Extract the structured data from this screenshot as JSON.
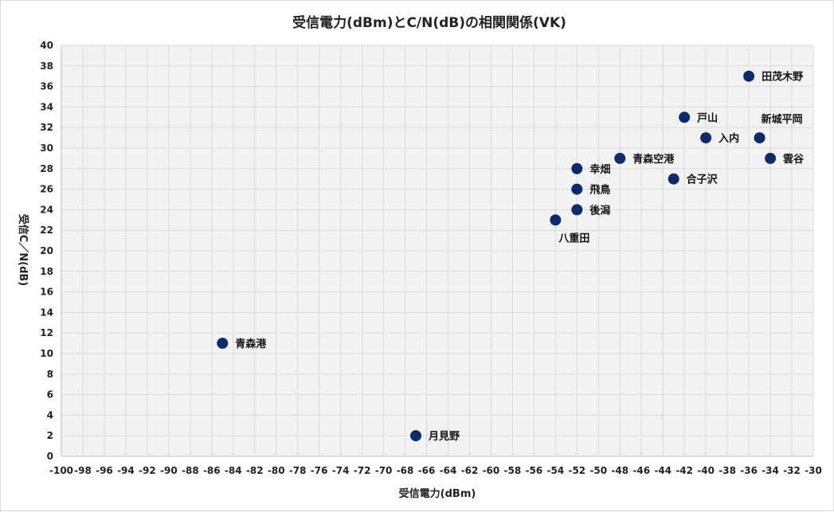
{
  "chart_data": {
    "type": "scatter",
    "title": "受信電力(dBm)とC/N(dB)の相関関係(VK)",
    "xlabel": "受信電力(dBm)",
    "ylabel": "受信C／N(dB)",
    "xlim": [
      -100,
      -30
    ],
    "ylim": [
      0,
      40
    ],
    "xstep": 2,
    "ystep": 2,
    "grid": true,
    "marker_color": "#0d2a6b",
    "gridline_color": "#d9d9d9",
    "plot_background": "#f2f2f2",
    "points": [
      {
        "label": "田茂木野",
        "x": -36,
        "y": 37,
        "label_pos": "right"
      },
      {
        "label": "戸山",
        "x": -42,
        "y": 33,
        "label_pos": "right"
      },
      {
        "label": "新城平岡",
        "x": -35,
        "y": 31,
        "label_pos": "above-right"
      },
      {
        "label": "入内",
        "x": -40,
        "y": 31,
        "label_pos": "right"
      },
      {
        "label": "雲谷",
        "x": -34,
        "y": 29,
        "label_pos": "right"
      },
      {
        "label": "青森空港",
        "x": -48,
        "y": 29,
        "label_pos": "right"
      },
      {
        "label": "幸畑",
        "x": -52,
        "y": 28,
        "label_pos": "right"
      },
      {
        "label": "合子沢",
        "x": -43,
        "y": 27,
        "label_pos": "right"
      },
      {
        "label": "飛鳥",
        "x": -52,
        "y": 26,
        "label_pos": "right"
      },
      {
        "label": "後潟",
        "x": -52,
        "y": 24,
        "label_pos": "right"
      },
      {
        "label": "八重田",
        "x": -54,
        "y": 23,
        "label_pos": "below"
      },
      {
        "label": "青森港",
        "x": -85,
        "y": 11,
        "label_pos": "right"
      },
      {
        "label": "月見野",
        "x": -67,
        "y": 2,
        "label_pos": "right"
      }
    ]
  }
}
